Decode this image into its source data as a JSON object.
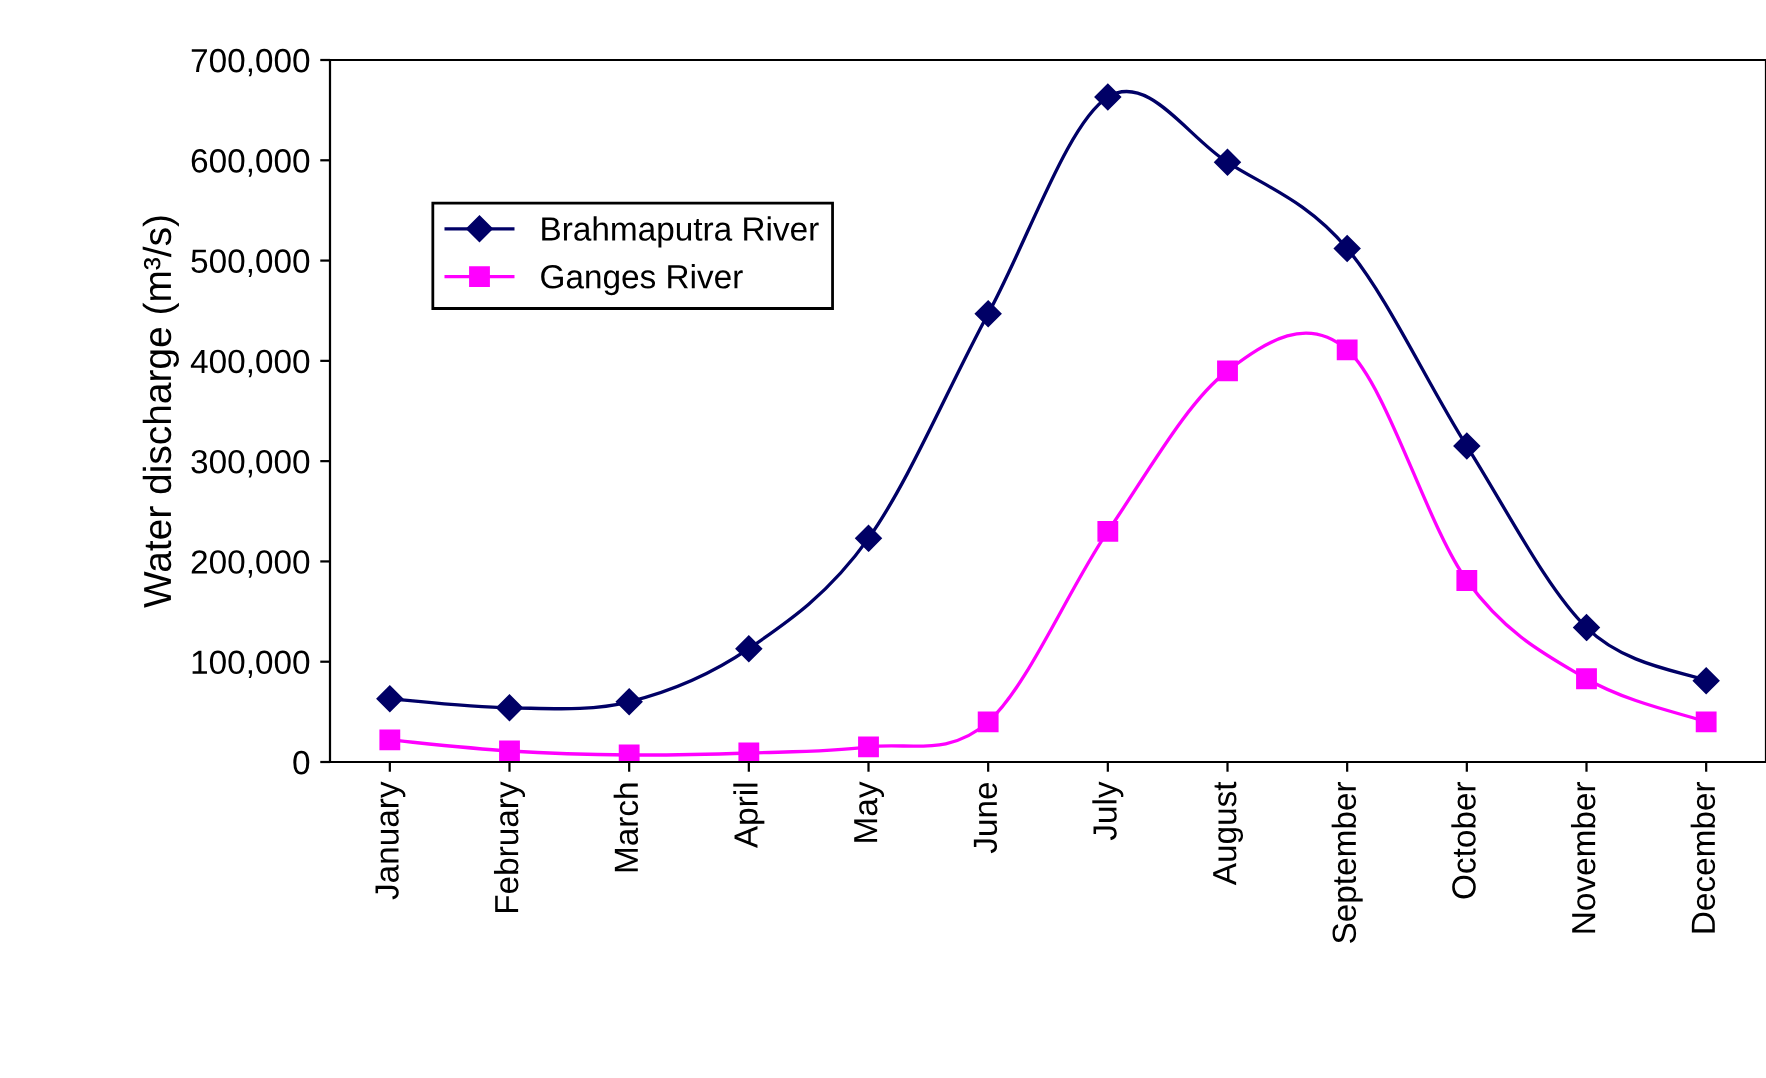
{
  "chart_data": {
    "type": "line",
    "ylabel": "Water discharge (m³/s)",
    "categories": [
      "January",
      "February",
      "March",
      "April",
      "May",
      "June",
      "July",
      "August",
      "September",
      "October",
      "November",
      "December"
    ],
    "series": [
      {
        "name": "Brahmaputra River",
        "color": "#000066",
        "marker": "diamond",
        "values": [
          63000,
          54000,
          60000,
          113000,
          223000,
          447000,
          663000,
          598000,
          512000,
          315000,
          134000,
          81000
        ]
      },
      {
        "name": "Ganges River",
        "color": "#ff00ff",
        "marker": "square",
        "values": [
          22000,
          11000,
          7000,
          9000,
          15000,
          40000,
          230000,
          390000,
          411000,
          181000,
          83000,
          40000
        ]
      }
    ],
    "ylim": [
      0,
      700000
    ],
    "yticks": [
      0,
      {
        "value": 100000,
        "label": "100,000"
      },
      {
        "value": 200000,
        "label": "200,000"
      },
      {
        "value": 300000,
        "label": "300,000"
      },
      {
        "value": 400000,
        "label": "400,000"
      },
      {
        "value": 500000,
        "label": "500,000"
      },
      {
        "value": 600000,
        "label": "600,000"
      },
      {
        "value": 700000,
        "label": "700,000"
      }
    ],
    "grid": false,
    "legend": "top left",
    "line_style": "solid"
  }
}
